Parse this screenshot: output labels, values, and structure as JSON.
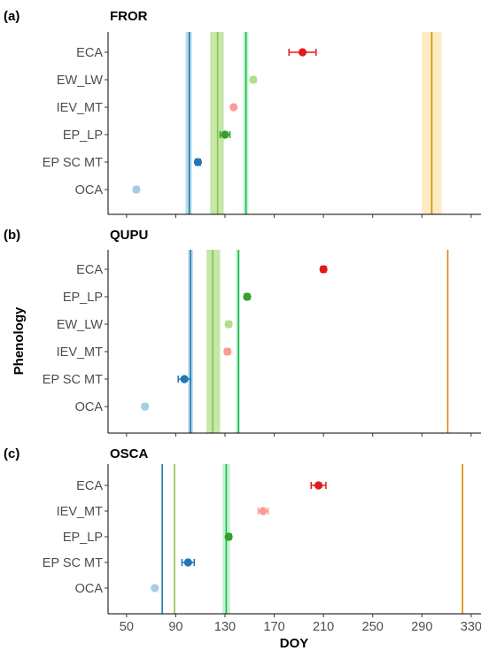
{
  "chart_data": {
    "type": "scatter",
    "ylabel": "Phenology",
    "xlabel": "DOY",
    "xlim": [
      35,
      338
    ],
    "xticks": [
      50,
      90,
      130,
      170,
      210,
      250,
      290,
      330
    ],
    "grid": false,
    "colors": {
      "ECA": "#e31a1c",
      "EW_LW": "#b2df8a",
      "IEV_MT": "#fb9a99",
      "EP_LP": "#33a02c",
      "EP SC MT": "#1f78b4",
      "OCA": "#a6cee3",
      "line_blue": "#1f78b4",
      "band_blue": "#a6cee3",
      "line_lightgreen": "#8cc152",
      "band_lightgreen": "#b2df8a",
      "line_green": "#1fb84f",
      "band_green": "#a8f0c0",
      "line_orange": "#d98a00",
      "band_orange": "#fde4b0"
    },
    "panels": [
      {
        "tag": "(a)",
        "title": "FROR",
        "categories": [
          "ECA",
          "EW_LW",
          "IEV_MT",
          "EP_LP",
          "EP SC MT",
          "OCA"
        ],
        "points": [
          {
            "cat": "ECA",
            "x": 193,
            "err": 11
          },
          {
            "cat": "EW_LW",
            "x": 153,
            "err": 2
          },
          {
            "cat": "IEV_MT",
            "x": 137,
            "err": 0
          },
          {
            "cat": "EP_LP",
            "x": 130,
            "err": 4
          },
          {
            "cat": "EP SC MT",
            "x": 108,
            "err": 2
          },
          {
            "cat": "OCA",
            "x": 58,
            "err": 2
          }
        ],
        "vlines": [
          {
            "x": 101,
            "lo": 98,
            "hi": 103,
            "color": "line_blue",
            "band": "band_blue"
          },
          {
            "x": 124,
            "lo": 118,
            "hi": 129,
            "color": "line_lightgreen",
            "band": "band_lightgreen"
          },
          {
            "x": 147,
            "lo": 145,
            "hi": 149,
            "color": "line_green",
            "band": "band_green"
          },
          {
            "x": 298,
            "lo": 290,
            "hi": 306,
            "color": "line_orange",
            "band": "band_orange"
          }
        ]
      },
      {
        "tag": "(b)",
        "title": "QUPU",
        "categories": [
          "ECA",
          "EP_LP",
          "EW_LW",
          "IEV_MT",
          "EP SC MT",
          "OCA"
        ],
        "points": [
          {
            "cat": "ECA",
            "x": 210,
            "err": 2
          },
          {
            "cat": "EP_LP",
            "x": 148,
            "err": 2
          },
          {
            "cat": "EW_LW",
            "x": 133,
            "err": 2
          },
          {
            "cat": "IEV_MT",
            "x": 132,
            "err": 2
          },
          {
            "cat": "EP SC MT",
            "x": 97,
            "err": 5
          },
          {
            "cat": "OCA",
            "x": 65,
            "err": 2
          }
        ],
        "vlines": [
          {
            "x": 102,
            "lo": 100,
            "hi": 104,
            "color": "line_blue",
            "band": "band_blue"
          },
          {
            "x": 120,
            "lo": 115,
            "hi": 126,
            "color": "line_lightgreen",
            "band": "band_lightgreen"
          },
          {
            "x": 141,
            "lo": 139,
            "hi": 142,
            "color": "line_green",
            "band": "band_green"
          },
          {
            "x": 311,
            "lo": 311,
            "hi": 311,
            "color": "line_orange",
            "band": "band_orange"
          }
        ]
      },
      {
        "tag": "(c)",
        "title": "OSCA",
        "categories": [
          "ECA",
          "IEV_MT",
          "EP_LP",
          "EP SC MT",
          "OCA"
        ],
        "points": [
          {
            "cat": "ECA",
            "x": 206,
            "err": 6
          },
          {
            "cat": "IEV_MT",
            "x": 161,
            "err": 4
          },
          {
            "cat": "EP_LP",
            "x": 133,
            "err": 2
          },
          {
            "cat": "EP SC MT",
            "x": 100,
            "err": 5
          },
          {
            "cat": "OCA",
            "x": 73,
            "err": 0
          }
        ],
        "vlines": [
          {
            "x": 79,
            "lo": 79,
            "hi": 79,
            "color": "line_blue",
            "band": "band_blue"
          },
          {
            "x": 89,
            "lo": 89,
            "hi": 89,
            "color": "line_lightgreen",
            "band": "band_lightgreen"
          },
          {
            "x": 131,
            "lo": 128,
            "hi": 134,
            "color": "line_green",
            "band": "band_green"
          },
          {
            "x": 323,
            "lo": 323,
            "hi": 323,
            "color": "line_orange",
            "band": "band_orange"
          }
        ]
      }
    ]
  }
}
